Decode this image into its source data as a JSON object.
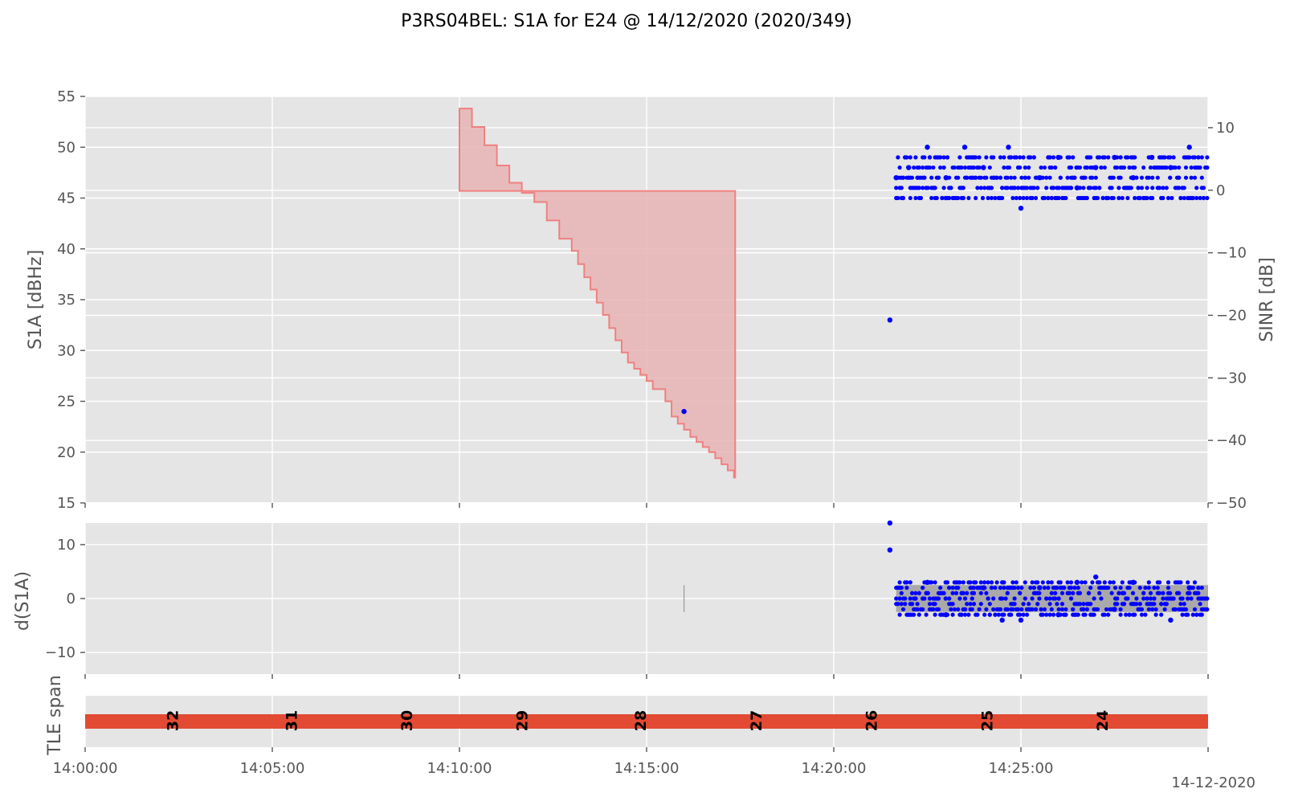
{
  "figure": {
    "title": "P3RS04BEL: S1A for E24 @ 14/12/2020 (2020/349)",
    "date_label": "14-12-2020",
    "colors": {
      "panel_bg": "#e5e5e5",
      "points": "#0000ff",
      "elevation_fill": "#e8b4b4",
      "elevation_edge": "#f08080",
      "tle_bar": "#e24a33",
      "dS1A_band": "#a9a9a9"
    }
  },
  "chart_data": [
    {
      "type": "scatter",
      "panel": "S1A",
      "ylabel": "S1A [dBHz]",
      "y2label": "SINR [dB]",
      "ylim": [
        15,
        55
      ],
      "y2lim": [
        -50,
        15
      ],
      "yticks": [
        "15",
        "20",
        "25",
        "30",
        "35",
        "40",
        "45",
        "50",
        "55"
      ],
      "y2ticks": [
        "−50",
        "−40",
        "−30",
        "−20",
        "−10",
        "0",
        "10"
      ],
      "x_range": [
        "14:00:00",
        "14:30:00"
      ],
      "grid": true,
      "elevation_step": {
        "description": "stepped red band",
        "top_time": [
          "14:10:00",
          "14:10:20",
          "14:10:40",
          "14:11:00",
          "14:11:20",
          "14:11:40",
          "14:12:00",
          "14:12:20",
          "14:12:40",
          "14:13:00",
          "14:13:10",
          "14:13:20",
          "14:13:30",
          "14:13:40",
          "14:13:50",
          "14:14:00",
          "14:14:10",
          "14:14:20",
          "14:14:30",
          "14:14:40",
          "14:14:50",
          "14:15:00",
          "14:15:10",
          "14:15:30",
          "14:15:40",
          "14:15:50",
          "14:16:00",
          "14:16:10",
          "14:16:20",
          "14:16:30",
          "14:16:40",
          "14:16:50",
          "14:17:00",
          "14:17:10",
          "14:17:20"
        ],
        "top_s1a": [
          53.8,
          52.0,
          50.2,
          48.2,
          46.5,
          45.5,
          44.6,
          42.8,
          41.0,
          39.8,
          38.5,
          37.2,
          36.0,
          34.7,
          33.5,
          32.2,
          31.0,
          29.8,
          28.8,
          28.2,
          27.6,
          27.0,
          26.2,
          25.0,
          23.5,
          22.8,
          22.2,
          21.5,
          21.0,
          20.5,
          20.0,
          19.4,
          18.8,
          18.2,
          17.5
        ],
        "bottom_s1a": 45.7,
        "end_time": "14:17:22"
      },
      "points": [
        {
          "t": "14:16:00",
          "s1a": 24
        },
        {
          "t": "14:21:30",
          "s1a": 33
        },
        {
          "t": "14:21:40",
          "s1a": 47
        },
        {
          "t": "14:22:00",
          "s1a": 48
        },
        {
          "t": "14:22:30",
          "s1a": 50
        },
        {
          "t": "14:23:00",
          "s1a": 47
        },
        {
          "t": "14:23:30",
          "s1a": 50
        },
        {
          "t": "14:24:00",
          "s1a": 48
        },
        {
          "t": "14:24:40",
          "s1a": 50
        },
        {
          "t": "14:25:00",
          "s1a": 44
        },
        {
          "t": "14:25:30",
          "s1a": 47
        },
        {
          "t": "14:26:00",
          "s1a": 49
        },
        {
          "t": "14:26:30",
          "s1a": 46
        },
        {
          "t": "14:27:00",
          "s1a": 48
        },
        {
          "t": "14:27:30",
          "s1a": 49
        },
        {
          "t": "14:28:00",
          "s1a": 47
        },
        {
          "t": "14:28:30",
          "s1a": 49
        },
        {
          "t": "14:29:00",
          "s1a": 48
        },
        {
          "t": "14:29:30",
          "s1a": 50
        }
      ],
      "band_series": {
        "x_start": "14:21:40",
        "x_end": "14:30:00",
        "values": [
          45,
          46,
          47,
          48,
          49
        ]
      }
    },
    {
      "type": "scatter",
      "panel": "dS1A",
      "ylabel": "d(S1A)",
      "ylim": [
        -14,
        14
      ],
      "yticks": [
        "−10",
        "0",
        "10"
      ],
      "grid": true,
      "points": [
        {
          "t": "14:21:30",
          "d": 14
        },
        {
          "t": "14:21:30",
          "d": 9
        },
        {
          "t": "14:22:30",
          "d": 3
        },
        {
          "t": "14:23:00",
          "d": -3
        },
        {
          "t": "14:24:00",
          "d": 2
        },
        {
          "t": "14:24:30",
          "d": -4
        },
        {
          "t": "14:25:00",
          "d": -4
        },
        {
          "t": "14:25:30",
          "d": 2
        },
        {
          "t": "14:26:00",
          "d": -3
        },
        {
          "t": "14:26:30",
          "d": 3
        },
        {
          "t": "14:27:00",
          "d": 4
        },
        {
          "t": "14:27:30",
          "d": -2
        },
        {
          "t": "14:28:00",
          "d": 3
        },
        {
          "t": "14:29:00",
          "d": -4
        },
        {
          "t": "14:29:30",
          "d": 2
        }
      ],
      "band": {
        "x_start": "14:21:40",
        "x_end": "14:30:00",
        "ymin": -2.5,
        "ymax": 2.5
      },
      "band_values": [
        -3,
        -2,
        -1,
        0,
        1,
        2,
        3
      ],
      "gray_marker": {
        "t": "14:16:00",
        "ymin": -2.5,
        "ymax": 2.5
      }
    },
    {
      "type": "bar",
      "panel": "TLE",
      "ylabel": "TLE span",
      "x_range": [
        "14:00:00",
        "14:30:00"
      ],
      "xticks": [
        "14:00:00",
        "14:05:00",
        "14:10:00",
        "14:15:00",
        "14:20:00",
        "14:25:00"
      ],
      "tle_labels": [
        {
          "label": "32",
          "t": "14:02:20"
        },
        {
          "label": "31",
          "t": "14:05:30"
        },
        {
          "label": "30",
          "t": "14:08:35"
        },
        {
          "label": "29",
          "t": "14:11:40"
        },
        {
          "label": "28",
          "t": "14:14:50"
        },
        {
          "label": "27",
          "t": "14:17:55"
        },
        {
          "label": "26",
          "t": "14:21:00"
        },
        {
          "label": "25",
          "t": "14:24:05"
        },
        {
          "label": "24",
          "t": "14:27:10"
        }
      ]
    }
  ]
}
